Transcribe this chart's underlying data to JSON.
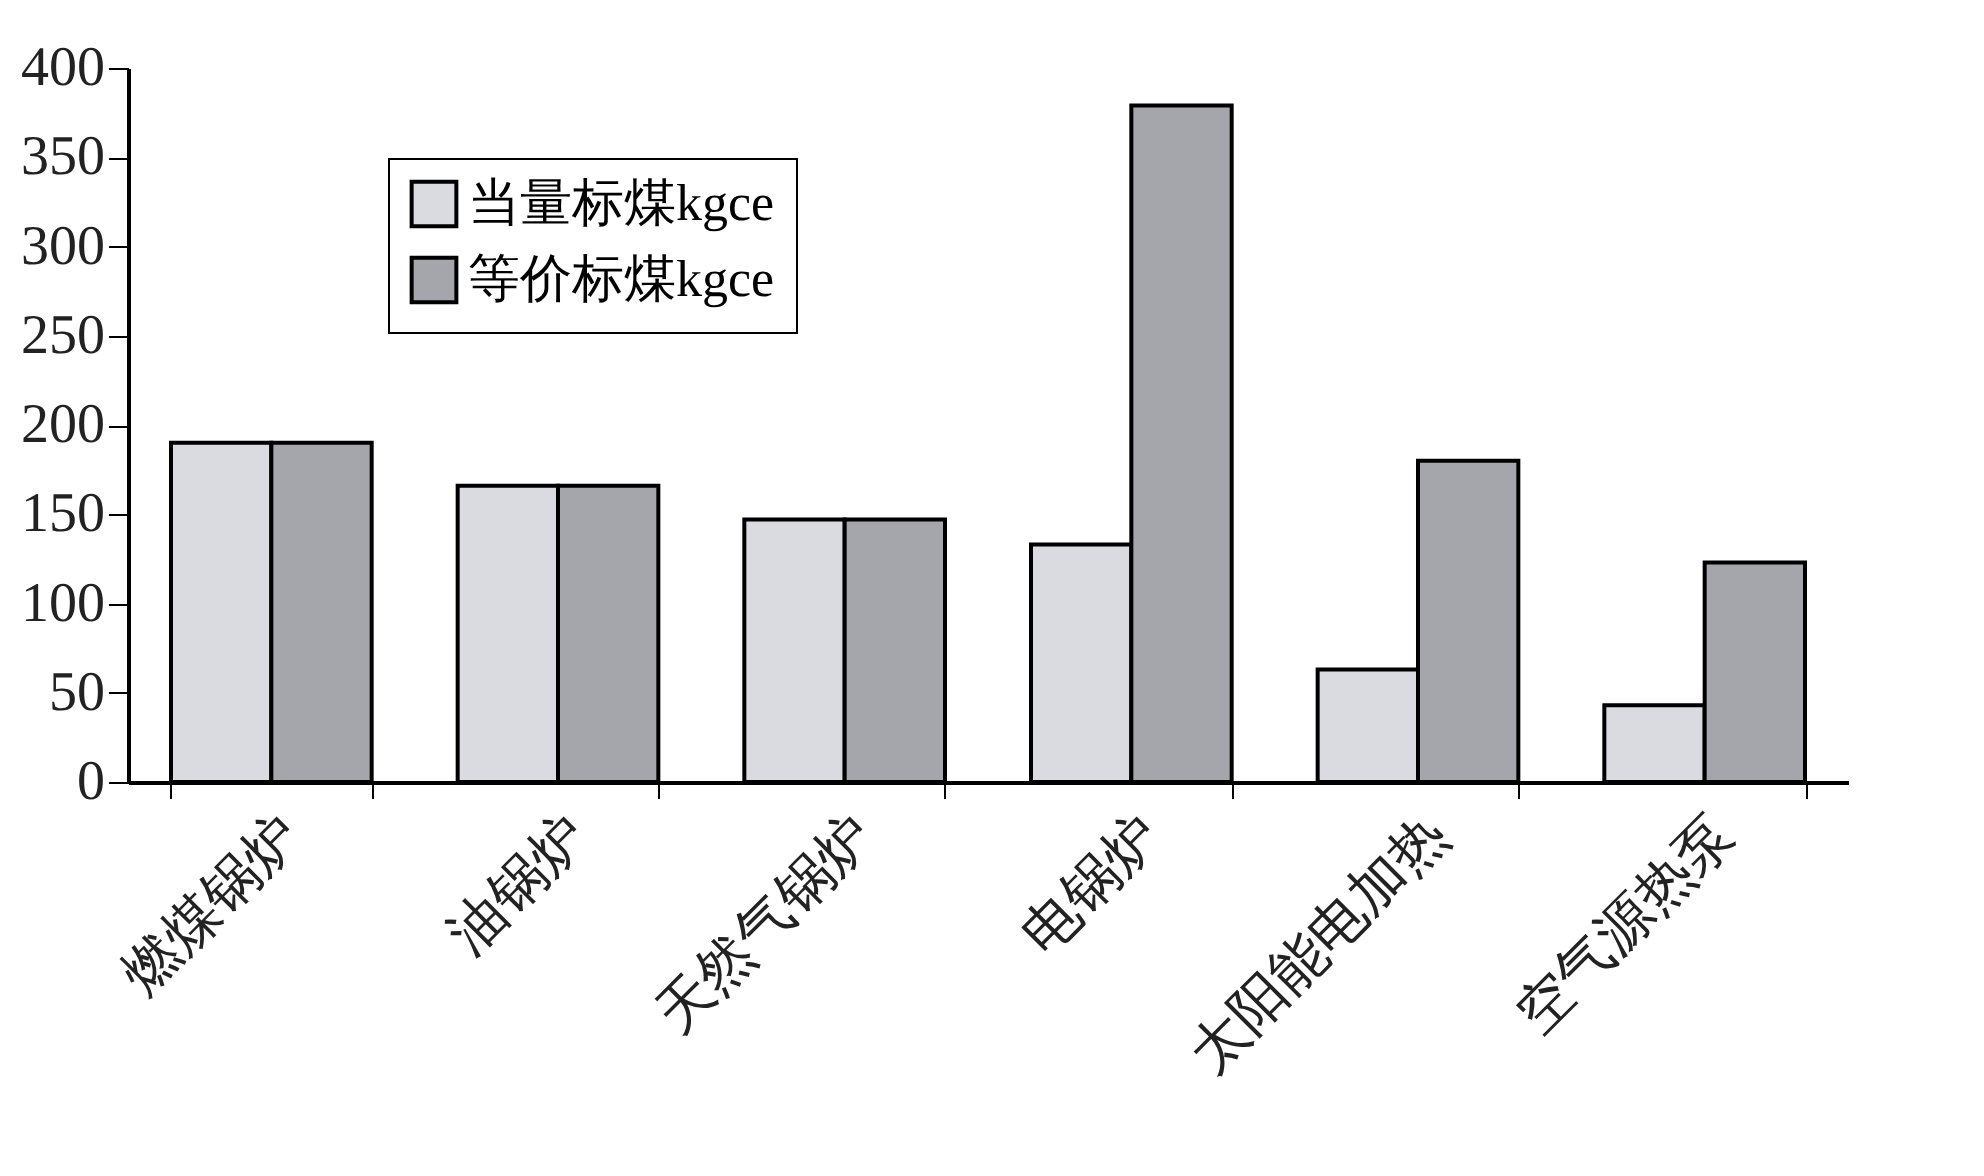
{
  "chart_data": {
    "type": "bar",
    "categories": [
      "燃煤锅炉",
      "油锅炉",
      "天然气锅炉",
      "电锅炉",
      "太阳能电加热",
      "空气源热泵"
    ],
    "series": [
      {
        "name": "当量标煤kgce",
        "color": "#d9dbe0",
        "values": [
          190,
          166,
          147,
          133,
          63,
          43
        ]
      },
      {
        "name": "等价标煤kgce",
        "color": "#a4a6ac",
        "values": [
          190,
          166,
          147,
          379,
          180,
          123
        ]
      }
    ],
    "ylim": [
      0,
      400
    ],
    "yticks": [
      0,
      50,
      100,
      150,
      200,
      250,
      300,
      350,
      400
    ],
    "grid": false,
    "legend": "top left"
  }
}
